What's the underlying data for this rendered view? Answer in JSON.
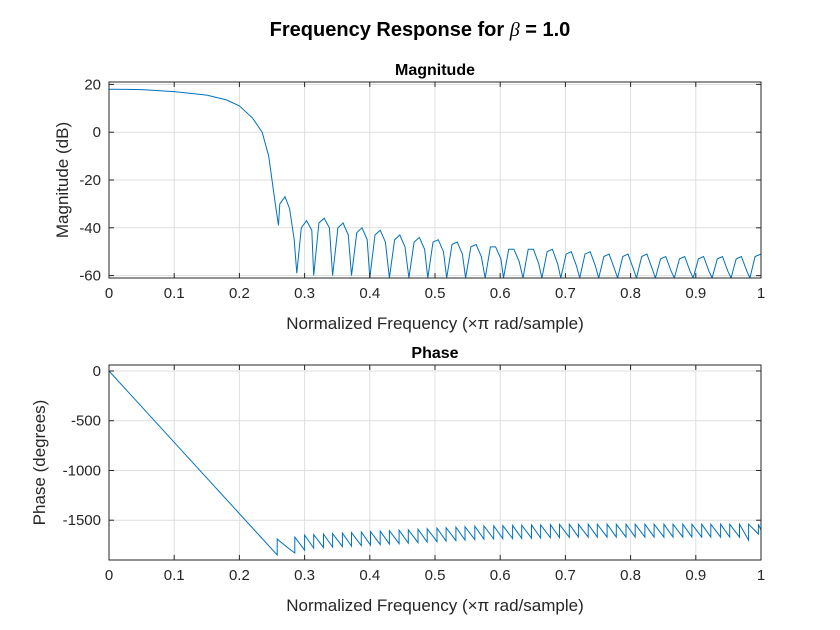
{
  "figure": {
    "title_prefix": "Frequency Response for ",
    "title_symbol": "β",
    "title_suffix": " = 1.0"
  },
  "chart_data": [
    {
      "type": "line",
      "title": "Magnitude",
      "xlabel": "Normalized Frequency  (×π rad/sample)",
      "ylabel": "Magnitude (dB)",
      "xlim": [
        0,
        1
      ],
      "ylim": [
        -61,
        21
      ],
      "xticks": [
        0,
        0.1,
        0.2,
        0.3,
        0.4,
        0.5,
        0.6,
        0.7,
        0.8,
        0.9,
        1
      ],
      "xtick_labels": [
        "0",
        "0.1",
        "0.2",
        "0.3",
        "0.4",
        "0.5",
        "0.6",
        "0.7",
        "0.8",
        "0.9",
        "1"
      ],
      "yticks": [
        -60,
        -40,
        -20,
        0,
        20
      ],
      "ytick_labels": [
        "-60",
        "-40",
        "-20",
        "0",
        "20"
      ],
      "grid": true,
      "line_color": "#0072BD",
      "series": [
        {
          "x": [
            0,
            0.05,
            0.1,
            0.15,
            0.18,
            0.2,
            0.22,
            0.235,
            0.245,
            0.25,
            0.255,
            0.26,
            0.262,
            0.27,
            0.277,
            0.284,
            0.288,
            0.295,
            0.303,
            0.311,
            0.314,
            0.322,
            0.33,
            0.338,
            0.343,
            0.351,
            0.359,
            0.367,
            0.372,
            0.38,
            0.388,
            0.396,
            0.4,
            0.408,
            0.416,
            0.424,
            0.43,
            0.438,
            0.446,
            0.454,
            0.46,
            0.468,
            0.476,
            0.484,
            0.489,
            0.497,
            0.505,
            0.513,
            0.518,
            0.526,
            0.534,
            0.542,
            0.547,
            0.555,
            0.563,
            0.571,
            0.577,
            0.585,
            0.593,
            0.601,
            0.605,
            0.613,
            0.621,
            0.629,
            0.635,
            0.643,
            0.651,
            0.659,
            0.664,
            0.672,
            0.68,
            0.688,
            0.693,
            0.701,
            0.709,
            0.717,
            0.722,
            0.73,
            0.738,
            0.746,
            0.751,
            0.759,
            0.767,
            0.775,
            0.78,
            0.788,
            0.796,
            0.804,
            0.809,
            0.817,
            0.825,
            0.833,
            0.838,
            0.846,
            0.854,
            0.862,
            0.867,
            0.875,
            0.883,
            0.891,
            0.896,
            0.904,
            0.912,
            0.92,
            0.925,
            0.933,
            0.941,
            0.949,
            0.954,
            0.962,
            0.97,
            0.978,
            0.983,
            0.991,
            1
          ],
          "y": [
            18,
            17.8,
            17,
            15.5,
            13.5,
            11,
            6,
            0,
            -10,
            -20,
            -30,
            -39,
            -30,
            -27,
            -32,
            -45,
            -59,
            -40,
            -37,
            -41,
            -60,
            -38,
            -36,
            -40,
            -60,
            -40,
            -38,
            -43,
            -60,
            -42,
            -40,
            -45,
            -61,
            -43,
            -41,
            -46,
            -61,
            -45,
            -43,
            -48,
            -61,
            -46,
            -44,
            -49,
            -61,
            -46,
            -45,
            -50,
            -61,
            -47,
            -46,
            -51,
            -61,
            -48,
            -47,
            -52,
            -61,
            -48,
            -48,
            -53,
            -61,
            -49,
            -49,
            -54,
            -61,
            -49,
            -49,
            -55,
            -61,
            -50,
            -49,
            -55,
            -61,
            -51,
            -50,
            -56,
            -61,
            -51,
            -50,
            -56,
            -61,
            -52,
            -51,
            -57,
            -61,
            -52,
            -51,
            -57,
            -61,
            -52,
            -51,
            -57,
            -61,
            -53,
            -52,
            -58,
            -61,
            -53,
            -52,
            -58,
            -61,
            -53,
            -52,
            -58,
            -61,
            -53,
            -52,
            -58,
            -61,
            -53,
            -52,
            -58,
            -61,
            -52,
            -51
          ]
        }
      ]
    },
    {
      "type": "line",
      "title": "Phase",
      "xlabel": "Normalized Frequency  (×π rad/sample)",
      "ylabel": "Phase (degrees)",
      "xlim": [
        0,
        1
      ],
      "ylim": [
        -1900,
        60
      ],
      "xticks": [
        0,
        0.1,
        0.2,
        0.3,
        0.4,
        0.5,
        0.6,
        0.7,
        0.8,
        0.9,
        1
      ],
      "xtick_labels": [
        "0",
        "0.1",
        "0.2",
        "0.3",
        "0.4",
        "0.5",
        "0.6",
        "0.7",
        "0.8",
        "0.9",
        "1"
      ],
      "yticks": [
        -1500,
        -1000,
        -500,
        0
      ],
      "ytick_labels": [
        "-1500",
        "-1000",
        "-500",
        "0"
      ],
      "grid": true,
      "line_color": "#0072BD",
      "series": [
        {
          "x": [
            0,
            0.258,
            0.258,
            0.275,
            0.285,
            0.285,
            0.3,
            0.3,
            0.314,
            0.314,
            0.329,
            0.329,
            0.343,
            0.343,
            0.358,
            0.358,
            0.372,
            0.372,
            0.387,
            0.387,
            0.401,
            0.401,
            0.416,
            0.416,
            0.43,
            0.43,
            0.445,
            0.445,
            0.459,
            0.459,
            0.474,
            0.474,
            0.488,
            0.488,
            0.503,
            0.503,
            0.517,
            0.517,
            0.532,
            0.532,
            0.546,
            0.546,
            0.561,
            0.561,
            0.575,
            0.575,
            0.59,
            0.59,
            0.604,
            0.604,
            0.619,
            0.619,
            0.633,
            0.633,
            0.648,
            0.648,
            0.662,
            0.662,
            0.677,
            0.677,
            0.691,
            0.691,
            0.706,
            0.706,
            0.72,
            0.72,
            0.735,
            0.735,
            0.749,
            0.749,
            0.764,
            0.764,
            0.778,
            0.778,
            0.793,
            0.793,
            0.807,
            0.807,
            0.822,
            0.822,
            0.836,
            0.836,
            0.851,
            0.851,
            0.865,
            0.865,
            0.88,
            0.88,
            0.894,
            0.894,
            0.909,
            0.909,
            0.923,
            0.923,
            0.938,
            0.938,
            0.952,
            0.952,
            0.967,
            0.967,
            0.981,
            0.981,
            0.996,
            0.996,
            1
          ],
          "y": [
            0,
            -1850,
            -1690,
            -1780,
            -1830,
            -1670,
            -1800,
            -1650,
            -1780,
            -1645,
            -1775,
            -1640,
            -1770,
            -1635,
            -1765,
            -1630,
            -1760,
            -1625,
            -1755,
            -1620,
            -1750,
            -1615,
            -1745,
            -1610,
            -1740,
            -1605,
            -1735,
            -1600,
            -1730,
            -1595,
            -1725,
            -1590,
            -1720,
            -1585,
            -1715,
            -1580,
            -1710,
            -1575,
            -1705,
            -1570,
            -1700,
            -1565,
            -1695,
            -1560,
            -1690,
            -1558,
            -1688,
            -1556,
            -1686,
            -1554,
            -1684,
            -1552,
            -1682,
            -1550,
            -1680,
            -1548,
            -1678,
            -1546,
            -1676,
            -1544,
            -1674,
            -1542,
            -1672,
            -1540,
            -1670,
            -1540,
            -1670,
            -1540,
            -1670,
            -1540,
            -1670,
            -1540,
            -1670,
            -1540,
            -1670,
            -1540,
            -1670,
            -1540,
            -1670,
            -1540,
            -1670,
            -1540,
            -1670,
            -1540,
            -1670,
            -1540,
            -1670,
            -1540,
            -1670,
            -1540,
            -1670,
            -1540,
            -1670,
            -1540,
            -1670,
            -1540,
            -1670,
            -1540,
            -1670,
            -1540,
            -1700,
            -1540,
            -1640,
            -1540,
            -1600
          ]
        }
      ]
    }
  ]
}
